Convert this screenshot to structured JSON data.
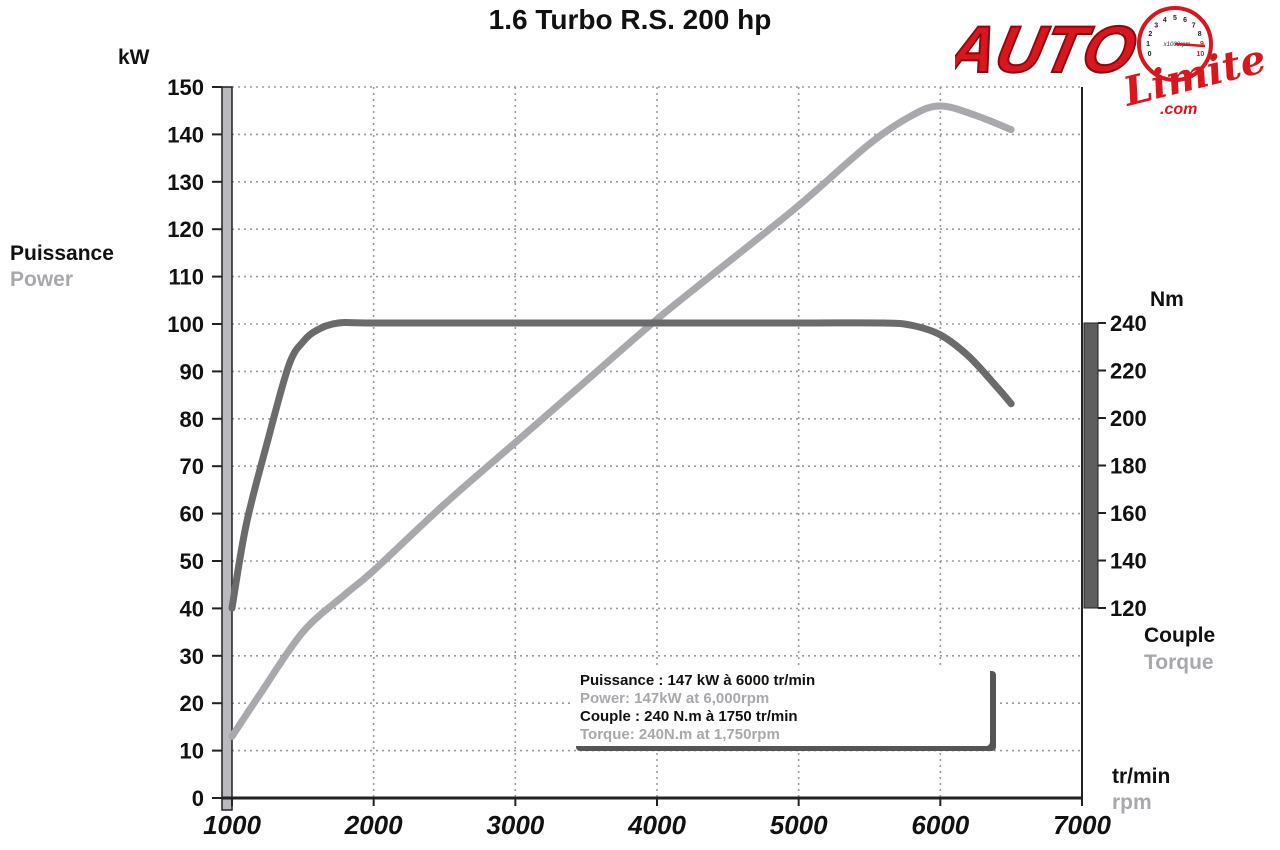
{
  "chart_data": {
    "type": "line",
    "title": "1.6 Turbo R.S. 200 hp",
    "x_axis": {
      "label_fr": "tr/min",
      "label_en": "rpm",
      "range": [
        1000,
        7000
      ],
      "ticks": [
        "1000",
        "2000",
        "3000",
        "4000",
        "5000",
        "6000",
        "7000"
      ]
    },
    "y_axis_left": {
      "unit": "kW",
      "label_fr": "Puissance",
      "label_en": "Power",
      "range": [
        0,
        150
      ],
      "ticks": [
        "0",
        "10",
        "20",
        "30",
        "40",
        "50",
        "60",
        "70",
        "80",
        "90",
        "100",
        "110",
        "120",
        "130",
        "140",
        "150"
      ]
    },
    "y_axis_right": {
      "unit": "Nm",
      "label_fr": "Couple",
      "label_en": "Torque",
      "range": [
        120,
        240
      ],
      "ticks": [
        "120",
        "140",
        "160",
        "180",
        "200",
        "220",
        "240"
      ]
    },
    "grid": true,
    "series": [
      {
        "key": "power",
        "axis": "left",
        "color": "#a8a8ad",
        "points": [
          [
            1000,
            13
          ],
          [
            1200,
            22
          ],
          [
            1500,
            35
          ],
          [
            1800,
            43
          ],
          [
            2000,
            48
          ],
          [
            2500,
            62
          ],
          [
            3000,
            75
          ],
          [
            3500,
            88
          ],
          [
            4000,
            101
          ],
          [
            4500,
            113
          ],
          [
            5000,
            125
          ],
          [
            5500,
            138
          ],
          [
            5800,
            144
          ],
          [
            6000,
            146
          ],
          [
            6250,
            144
          ],
          [
            6500,
            141
          ]
        ]
      },
      {
        "key": "torque",
        "axis": "right",
        "color": "#6b6b6b",
        "points": [
          [
            1000,
            120
          ],
          [
            1100,
            155
          ],
          [
            1250,
            190
          ],
          [
            1400,
            222
          ],
          [
            1500,
            232
          ],
          [
            1600,
            237
          ],
          [
            1750,
            240
          ],
          [
            2000,
            240
          ],
          [
            3000,
            240
          ],
          [
            4000,
            240
          ],
          [
            5000,
            240
          ],
          [
            5600,
            240
          ],
          [
            5800,
            239
          ],
          [
            6000,
            235
          ],
          [
            6200,
            226
          ],
          [
            6400,
            213
          ],
          [
            6500,
            206
          ]
        ]
      }
    ]
  },
  "info_box": {
    "line_1": "Puissance : 147 kW à 6000 tr/min",
    "line_2": "Power: 147kW at 6,000rpm",
    "line_3": "Couple : 240 N.m à 1750 tr/min",
    "line_4": "Torque: 240N.m at 1,750rpm"
  },
  "logo": {
    "brand": "AUTO",
    "script": "Limite",
    "domain": ".com",
    "gauge_unit": "x1000rpm",
    "gauge_numbers": [
      "0",
      "1",
      "2",
      "3",
      "4",
      "5",
      "6",
      "7",
      "8",
      "9",
      "10"
    ],
    "brand_color": "#d9161e"
  }
}
